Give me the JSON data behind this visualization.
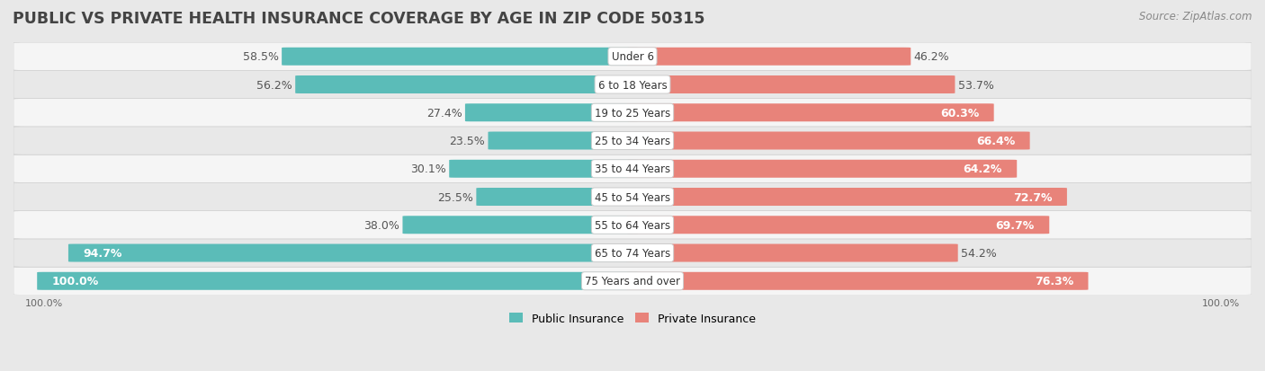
{
  "title": "PUBLIC VS PRIVATE HEALTH INSURANCE COVERAGE BY AGE IN ZIP CODE 50315",
  "source": "Source: ZipAtlas.com",
  "categories": [
    "Under 6",
    "6 to 18 Years",
    "19 to 25 Years",
    "25 to 34 Years",
    "35 to 44 Years",
    "45 to 54 Years",
    "55 to 64 Years",
    "65 to 74 Years",
    "75 Years and over"
  ],
  "public_values": [
    58.5,
    56.2,
    27.4,
    23.5,
    30.1,
    25.5,
    38.0,
    94.7,
    100.0
  ],
  "private_values": [
    46.2,
    53.7,
    60.3,
    66.4,
    64.2,
    72.7,
    69.7,
    54.2,
    76.3
  ],
  "public_color": "#5bbcb8",
  "private_color": "#e8837a",
  "bg_color": "#e8e8e8",
  "row_light": "#f5f5f5",
  "row_dark": "#e8e8e8",
  "bar_height": 0.62,
  "max_value": 100.0,
  "title_fontsize": 12.5,
  "label_fontsize": 9,
  "category_fontsize": 8.5,
  "legend_fontsize": 9,
  "source_fontsize": 8.5,
  "pub_white_threshold": 85,
  "priv_white_threshold": 58
}
